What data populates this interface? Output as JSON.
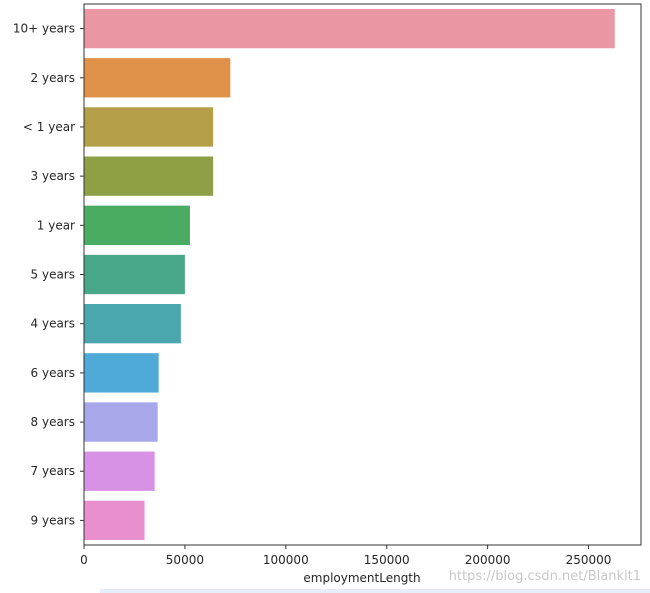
{
  "chart_data": {
    "type": "bar",
    "orientation": "horizontal",
    "categories": [
      "10+ years",
      "2 years",
      "< 1 year",
      "3 years",
      "1 year",
      "5 years",
      "4 years",
      "6 years",
      "8 years",
      "7 years",
      "9 years"
    ],
    "values": [
      263000,
      72500,
      64000,
      64000,
      52500,
      50000,
      48000,
      37000,
      36500,
      35000,
      30000
    ],
    "colors": [
      "#ea96a3",
      "#e09149",
      "#b59e48",
      "#8e9f45",
      "#4aab63",
      "#4aa88a",
      "#4aa7ae",
      "#4faad7",
      "#a6a8ea",
      "#d792e6",
      "#ea8fcd"
    ],
    "xlabel": "employmentLength",
    "ylabel": "",
    "xlim": [
      0,
      276000
    ],
    "xticks": [
      0,
      50000,
      100000,
      150000,
      200000,
      250000
    ],
    "xtick_labels": [
      "0",
      "50000",
      "100000",
      "150000",
      "200000",
      "250000"
    ],
    "grid": false
  },
  "watermark": "https://blog.csdn.net/Blankit1"
}
